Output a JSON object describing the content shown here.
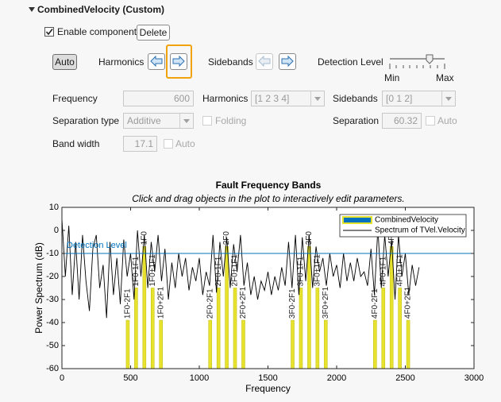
{
  "panel": {
    "title": "CombinedVelocity (Custom)",
    "enable_component": {
      "label": "Enable component",
      "checked": true
    },
    "delete": "Delete",
    "auto": "Auto",
    "harmonics_label": "Harmonics",
    "sidebands_label": "Sidebands",
    "detection_level_label": "Detection Level",
    "slider": {
      "min_label": "Min",
      "max_label": "Max"
    },
    "frequency": {
      "label": "Frequency",
      "value": "600"
    },
    "harmonics": {
      "label": "Harmonics",
      "value": "[1 2 3 4]"
    },
    "sidebands": {
      "label": "Sidebands",
      "value": "[0 1 2]"
    },
    "separation_type": {
      "label": "Separation type",
      "value": "Additive"
    },
    "folding": {
      "label": "Folding",
      "checked": false
    },
    "separation": {
      "label": "Separation",
      "value": "60.32"
    },
    "separation_auto": {
      "label": "Auto",
      "checked": false
    },
    "band_width": {
      "label": "Band width",
      "value": "17.1"
    },
    "band_width_auto": {
      "label": "Auto",
      "checked": false
    }
  },
  "chart_data": {
    "type": "line",
    "title": "Fault Frequency Bands",
    "subtitle": "Click and drag objects in the plot to interactively edit parameters.",
    "xlabel": "Frequency",
    "ylabel": "Power Spectrum (dB)",
    "xlim": [
      0,
      3000
    ],
    "xticks": [
      0,
      500,
      1000,
      1500,
      2000,
      2500,
      3000
    ],
    "ylim": [
      -60,
      10
    ],
    "yticks": [
      -60,
      -50,
      -40,
      -30,
      -20,
      -10,
      0,
      10
    ],
    "legend": "northeast",
    "detection_level": {
      "label": "Detection Level",
      "value": -10,
      "color": "#0072bd"
    },
    "series": [
      {
        "name": "CombinedVelocity",
        "type": "bar",
        "color": "#e6e22e",
        "x": [
          479.36,
          539.68,
          600,
          660.32,
          720.64,
          1079.36,
          1139.68,
          1200,
          1260.32,
          1320.64,
          1679.36,
          1739.68,
          1800,
          1860.32,
          1920.64,
          2279.36,
          2339.68,
          2400,
          2460.32,
          2520.64
        ],
        "values": [
          -39,
          -25,
          -7,
          -25,
          -39,
          -39,
          -25,
          -7,
          -25,
          -39,
          -39,
          -25,
          -7,
          -25,
          -39,
          -39,
          -25,
          -7,
          -25,
          -39
        ],
        "labels": [
          "1F0-2F1",
          "1F0-1F1",
          "1F0",
          "1F0+1F1",
          "1F0+2F1",
          "2F0-2F1",
          "2F0-1F1",
          "2F0",
          "2F0+1F1",
          "2F0+2F1",
          "3F0-2F1",
          "3F0-1F1",
          "3F0",
          "3F0+1F1",
          "3F0+2F1",
          "4F0-2F1",
          "4F0-1F1",
          "4F0",
          "4F0+1F1",
          "4F0+2F1"
        ]
      },
      {
        "name": "Spectrum of TVel.Velocity",
        "type": "line",
        "color": "#000000",
        "x": [
          0,
          25,
          50,
          75,
          100,
          125,
          150,
          175,
          200,
          225,
          250,
          275,
          300,
          325,
          350,
          375,
          400,
          425,
          450,
          475,
          500,
          525,
          550,
          575,
          600,
          625,
          650,
          675,
          700,
          725,
          750,
          775,
          800,
          825,
          850,
          875,
          900,
          925,
          950,
          975,
          1000,
          1025,
          1050,
          1075,
          1100,
          1125,
          1150,
          1175,
          1200,
          1225,
          1250,
          1275,
          1300,
          1325,
          1350,
          1375,
          1400,
          1425,
          1450,
          1475,
          1500,
          1525,
          1550,
          1575,
          1600,
          1625,
          1650,
          1675,
          1700,
          1725,
          1750,
          1775,
          1800,
          1825,
          1850,
          1875,
          1900,
          1925,
          1950,
          1975,
          2000,
          2025,
          2050,
          2075,
          2100,
          2125,
          2150,
          2175,
          2200,
          2225,
          2250,
          2275,
          2300,
          2325,
          2350,
          2375,
          2400,
          2425,
          2450,
          2475,
          2500,
          2525,
          2550,
          2575,
          2600
        ],
        "values": [
          5,
          -20,
          2,
          -28,
          -5,
          -30,
          -2,
          -22,
          -35,
          -8,
          -2,
          -25,
          -15,
          -38,
          -5,
          -28,
          -12,
          -32,
          -4,
          -20,
          -10,
          -30,
          0,
          -20,
          -2,
          -25,
          -5,
          -18,
          -2,
          -22,
          -8,
          -30,
          -14,
          -25,
          -10,
          -20,
          -12,
          -26,
          -16,
          -22,
          -12,
          -28,
          -18,
          -24,
          -2,
          -27,
          -5,
          -20,
          -3,
          -25,
          -6,
          -18,
          -2,
          -24,
          -14,
          -28,
          -20,
          -30,
          -22,
          -26,
          -18,
          -28,
          -20,
          -26,
          -16,
          -24,
          -5,
          -25,
          -2,
          -28,
          -3,
          -22,
          -2,
          -25,
          -7,
          -18,
          -12,
          -24,
          -10,
          -20,
          -15,
          -25,
          -10,
          -22,
          -14,
          -22,
          -12,
          -20,
          -18,
          -24,
          -8,
          -28,
          1,
          -25,
          -2,
          -20,
          -4,
          -30,
          -2,
          -20,
          -10,
          -28,
          -15,
          -24,
          -16
        ]
      }
    ]
  }
}
